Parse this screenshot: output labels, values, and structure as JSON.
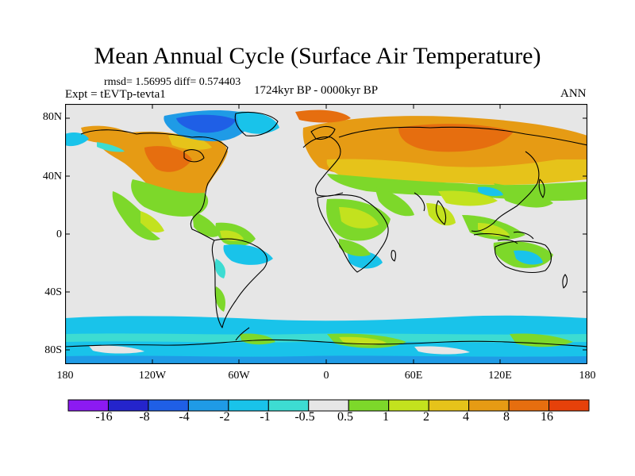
{
  "title": "Mean Annual Cycle (Surface Air Temperature)",
  "stats": "rmsd= 1.56995 diff= 0.574403",
  "experiment": "Expt = tEVTp-tevta1",
  "period": "1724kyr BP - 0000kyr BP",
  "season": "ANN",
  "lat_labels": [
    "80N",
    "40N",
    "0",
    "40S",
    "80S"
  ],
  "lon_labels": [
    "180",
    "120W",
    "60W",
    "0",
    "60E",
    "120E",
    "180"
  ],
  "colorbar": {
    "colors": [
      "#8c1af2",
      "#2424cc",
      "#1f5fe6",
      "#1f9be6",
      "#19c3ea",
      "#3ddcd2",
      "#e6e6e6",
      "#7dd82a",
      "#c3e21e",
      "#e6c31a",
      "#e69b14",
      "#e66e0f",
      "#e6410a"
    ],
    "labels": [
      "-16",
      "-8",
      "-4",
      "-2",
      "-1",
      "-0.5",
      "0.5",
      "1",
      "2",
      "4",
      "8",
      "16"
    ]
  },
  "legend_colors": {
    "neutral": "#e6e6e6",
    "warm_small": "#7dd82a",
    "warm_1": "#c3e21e",
    "warm_2": "#e6c31a",
    "warm_4": "#e69b14",
    "warm_8": "#e66e0f",
    "cool_small": "#3ddcd2",
    "cool_1": "#19c3ea",
    "cool_2": "#1f9be6",
    "cool_4": "#1f5fe6",
    "cool_8": "#2424cc"
  }
}
